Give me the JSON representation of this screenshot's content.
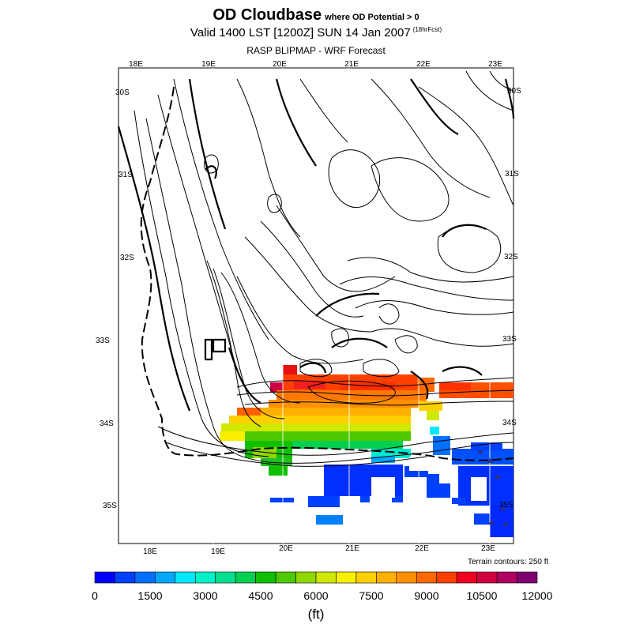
{
  "header": {
    "title": "OD Cloudbase",
    "title_qualifier": "where OD Potential > 0",
    "valid_line": "Valid 1400 LST [1200Z] SUN 14 Jan 2007",
    "forecast_hours": "(18hrFcst)",
    "model_line": "RASP BLIPMAP - WRF Forecast"
  },
  "map": {
    "lon_labels_top": [
      "18E",
      "19E",
      "20E",
      "21E",
      "22E",
      "23E"
    ],
    "lon_labels_bottom": [
      "18E",
      "19E",
      "20E",
      "21E",
      "22E",
      "23E"
    ],
    "lat_labels_left": [
      "30S",
      "31S",
      "32S",
      "33S",
      "34S",
      "35S"
    ],
    "lat_labels_right": [
      "30S",
      "31S",
      "32S",
      "33S",
      "34S",
      "35S"
    ],
    "terrain_note": "Terrain contours: 250 ft"
  },
  "colorbar": {
    "colors": [
      "#0000ff",
      "#0040ff",
      "#0070ff",
      "#00a8ff",
      "#00e8ff",
      "#00f0c8",
      "#00e090",
      "#00d050",
      "#10c000",
      "#50c800",
      "#90d800",
      "#d0e800",
      "#f8f000",
      "#ffd000",
      "#ffb000",
      "#ff9000",
      "#ff6800",
      "#ff4000",
      "#f00020",
      "#d00040",
      "#b00060",
      "#800070"
    ],
    "tick_labels": [
      "0",
      "1500",
      "3000",
      "4500",
      "6000",
      "7500",
      "9000",
      "10500",
      "12000"
    ],
    "units": "(ft)"
  }
}
